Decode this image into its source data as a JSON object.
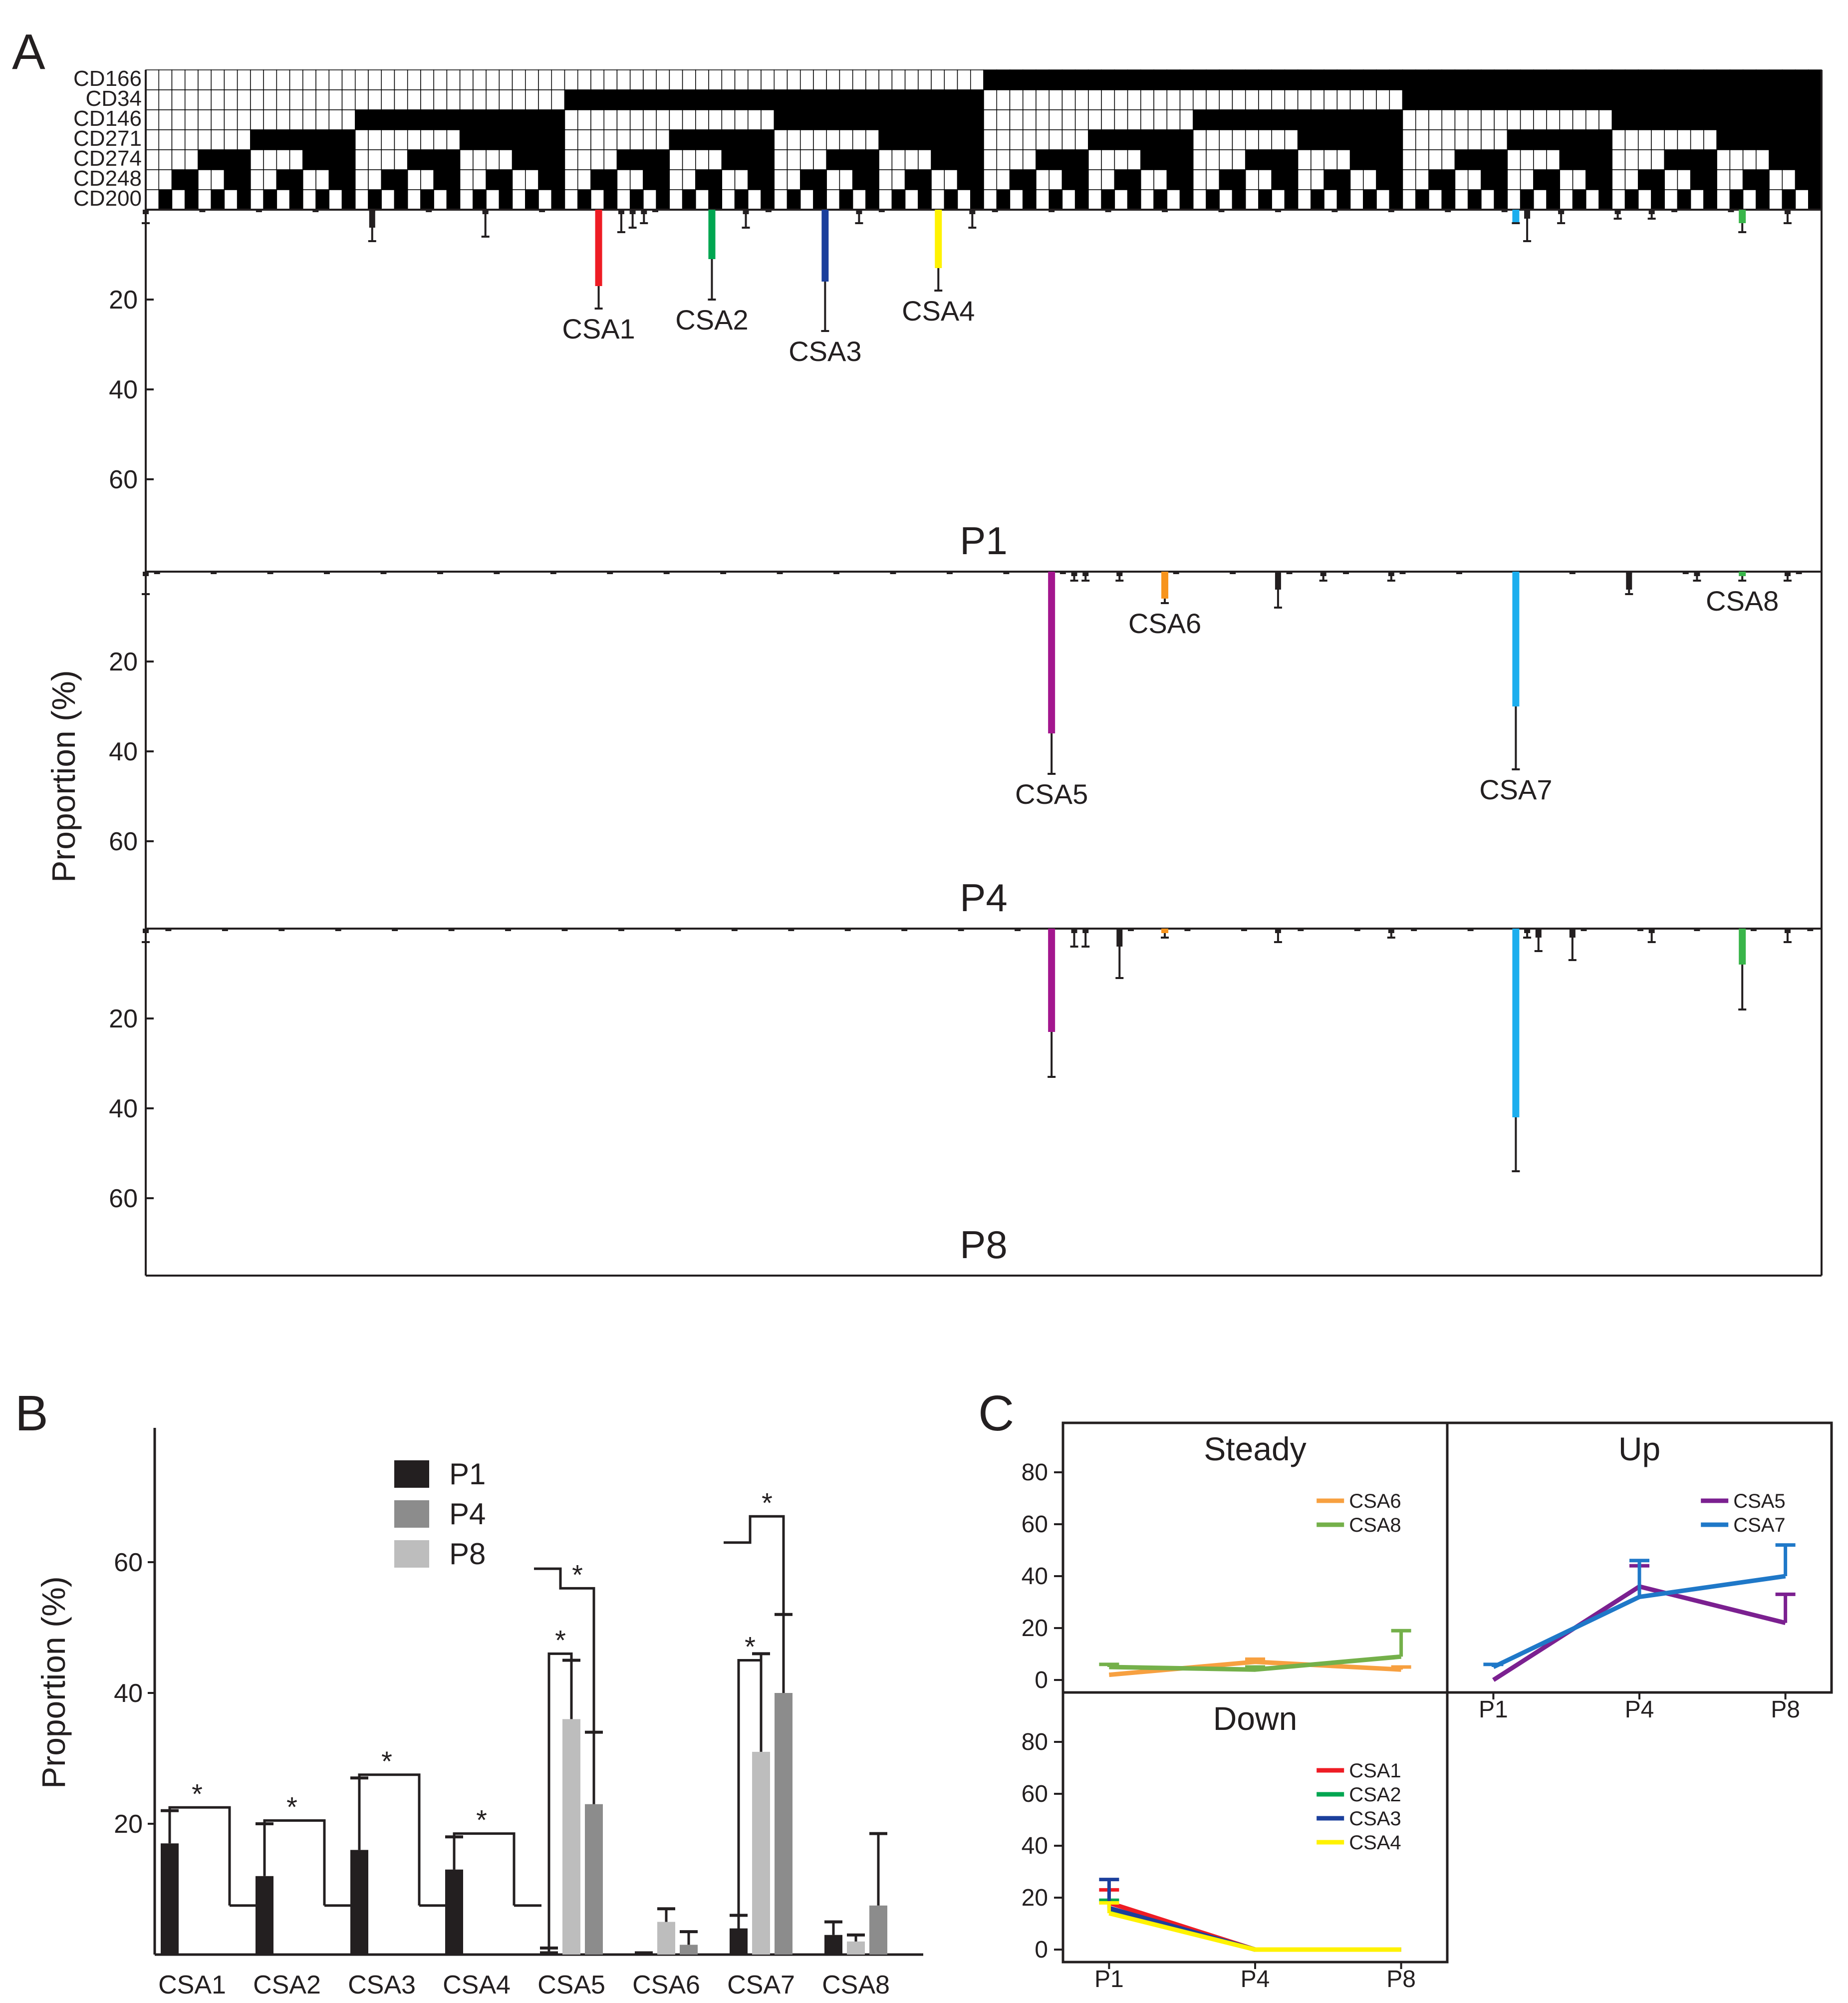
{
  "panel_labels": {
    "a": "A",
    "b": "B",
    "c": "C"
  },
  "colors": {
    "CSA1": "#ee1c24",
    "CSA2": "#00a651",
    "CSA3": "#1b3f9c",
    "CSA4": "#fff200",
    "CSA5": "#a3168e",
    "CSA6": "#f7941d",
    "CSA7": "#1caeee",
    "CSA8": "#39b54a",
    "black": "#231f20",
    "P4_bar": "#8c8c8c",
    "P8_bar": "#bdbdbd",
    "line_CSA5": "#7b2090",
    "line_CSA6": "#f7a040",
    "line_CSA7": "#1f78c8",
    "line_CSA8": "#74b04a"
  },
  "chart_data": [
    {
      "id": "A",
      "type": "bar",
      "markers": [
        "CD166",
        "CD34",
        "CD146",
        "CD271",
        "CD274",
        "CD248",
        "CD200"
      ],
      "n_combinations": 128,
      "ylabel": "Proportion (%)",
      "yticks": [
        20,
        40,
        60
      ],
      "ylim": [
        0,
        80
      ],
      "panels": [
        {
          "name": "P1",
          "highlights": [
            {
              "label": "CSA1",
              "index": 40,
              "value": 17,
              "err": 5,
              "color": "CSA1"
            },
            {
              "label": "CSA2",
              "index": 50,
              "value": 11,
              "err": 9,
              "color": "CSA2"
            },
            {
              "label": "CSA3",
              "index": 60,
              "value": 16,
              "err": 11,
              "color": "CSA3"
            },
            {
              "label": "CSA4",
              "index": 70,
              "value": 13,
              "err": 5,
              "color": "CSA4"
            },
            {
              "label": "",
              "index": 121,
              "value": 3,
              "err": 0,
              "color": "CSA7"
            },
            {
              "label": "",
              "index": 141,
              "value": 3,
              "err": 2,
              "color": "CSA8"
            }
          ],
          "small": [
            [
              0,
              1,
              2
            ],
            [
              20,
              4,
              3
            ],
            [
              30,
              1,
              5
            ],
            [
              42,
              1,
              4
            ],
            [
              43,
              1,
              3
            ],
            [
              44,
              1,
              2
            ],
            [
              53,
              1,
              3
            ],
            [
              63,
              1,
              2
            ],
            [
              73,
              1,
              3
            ],
            [
              122,
              2,
              5
            ],
            [
              125,
              1,
              2
            ],
            [
              130,
              1,
              1
            ],
            [
              133,
              1,
              1
            ],
            [
              145,
              1,
              2
            ]
          ]
        },
        {
          "name": "P4",
          "highlights": [
            {
              "label": "CSA5",
              "index": 80,
              "value": 36,
              "err": 9,
              "color": "CSA5"
            },
            {
              "label": "CSA6",
              "index": 90,
              "value": 6,
              "err": 1,
              "color": "CSA6"
            },
            {
              "label": "CSA7",
              "index": 121,
              "value": 30,
              "err": 14,
              "color": "CSA7"
            },
            {
              "label": "CSA8",
              "index": 141,
              "value": 1,
              "err": 1,
              "color": "CSA8"
            }
          ],
          "small": [
            [
              0,
              1,
              4
            ],
            [
              82,
              1,
              1
            ],
            [
              83,
              1,
              1
            ],
            [
              86,
              1,
              1
            ],
            [
              100,
              4,
              4
            ],
            [
              104,
              1,
              1
            ],
            [
              110,
              1,
              1
            ],
            [
              131,
              4,
              1
            ],
            [
              137,
              1,
              1
            ],
            [
              145,
              1,
              1
            ]
          ]
        },
        {
          "name": "P8",
          "highlights": [
            {
              "label": "",
              "index": 80,
              "value": 23,
              "err": 10,
              "color": "CSA5"
            },
            {
              "label": "",
              "index": 90,
              "value": 1,
              "err": 1,
              "color": "CSA6"
            },
            {
              "label": "",
              "index": 121,
              "value": 42,
              "err": 12,
              "color": "CSA7"
            },
            {
              "label": "",
              "index": 141,
              "value": 8,
              "err": 10,
              "color": "CSA8"
            }
          ],
          "small": [
            [
              0,
              1,
              2
            ],
            [
              82,
              1,
              3
            ],
            [
              83,
              1,
              3
            ],
            [
              86,
              4,
              7
            ],
            [
              100,
              1,
              2
            ],
            [
              110,
              1,
              1
            ],
            [
              122,
              1,
              1
            ],
            [
              123,
              2,
              3
            ],
            [
              126,
              2,
              5
            ],
            [
              133,
              1,
              2
            ],
            [
              145,
              1,
              2
            ]
          ]
        }
      ]
    },
    {
      "id": "B",
      "type": "bar",
      "categories": [
        "CSA1",
        "CSA2",
        "CSA3",
        "CSA4",
        "CSA5",
        "CSA6",
        "CSA7",
        "CSA8"
      ],
      "series": [
        {
          "name": "P1",
          "values": [
            17,
            12,
            16,
            13,
            0.5,
            0.5,
            4,
            3
          ],
          "err": [
            5,
            8,
            11,
            5,
            0.5,
            0,
            2,
            2
          ]
        },
        {
          "name": "P4",
          "values": [
            0,
            0,
            0,
            0,
            36,
            5,
            31,
            2
          ],
          "err": [
            0,
            0,
            0,
            0,
            9,
            2,
            15,
            1
          ]
        },
        {
          "name": "P8",
          "values": [
            0,
            0,
            0,
            0,
            23,
            1.5,
            40,
            7.5
          ],
          "err": [
            0,
            0,
            0,
            0,
            11,
            2,
            12,
            11
          ]
        }
      ],
      "ylabel": "Proportion (%)",
      "yticks": [
        20,
        40,
        60
      ],
      "ylim": [
        0,
        80
      ],
      "significance": "*"
    },
    {
      "id": "C",
      "type": "line",
      "x": [
        "P1",
        "P4",
        "P8"
      ],
      "yticks": [
        0,
        20,
        40,
        60,
        80
      ],
      "ylim": [
        0,
        90
      ],
      "subplots": [
        {
          "title": "Steady",
          "series": [
            {
              "name": "CSA6",
              "values": [
                2,
                7,
                4
              ],
              "err": [
                0,
                1,
                1
              ],
              "color": "line_CSA6"
            },
            {
              "name": "CSA8",
              "values": [
                5,
                4,
                9
              ],
              "err": [
                1,
                1,
                10
              ],
              "color": "line_CSA8"
            }
          ]
        },
        {
          "title": "Up",
          "series": [
            {
              "name": "CSA5",
              "values": [
                0,
                36,
                22
              ],
              "err": [
                0,
                8,
                11
              ],
              "color": "line_CSA5"
            },
            {
              "name": "CSA7",
              "values": [
                5,
                32,
                40
              ],
              "err": [
                1,
                14,
                12
              ],
              "color": "line_CSA7"
            }
          ]
        },
        {
          "title": "Down",
          "series": [
            {
              "name": "CSA1",
              "values": [
                18,
                0,
                0
              ],
              "err": [
                5,
                0,
                0
              ],
              "color": "CSA1"
            },
            {
              "name": "CSA2",
              "values": [
                15,
                0,
                0
              ],
              "err": [
                4,
                0,
                0
              ],
              "color": "CSA2"
            },
            {
              "name": "CSA3",
              "values": [
                16,
                0,
                0
              ],
              "err": [
                11,
                0,
                0
              ],
              "color": "CSA3"
            },
            {
              "name": "CSA4",
              "values": [
                14,
                0,
                0
              ],
              "err": [
                4,
                0,
                0
              ],
              "color": "CSA4"
            }
          ]
        }
      ]
    }
  ]
}
